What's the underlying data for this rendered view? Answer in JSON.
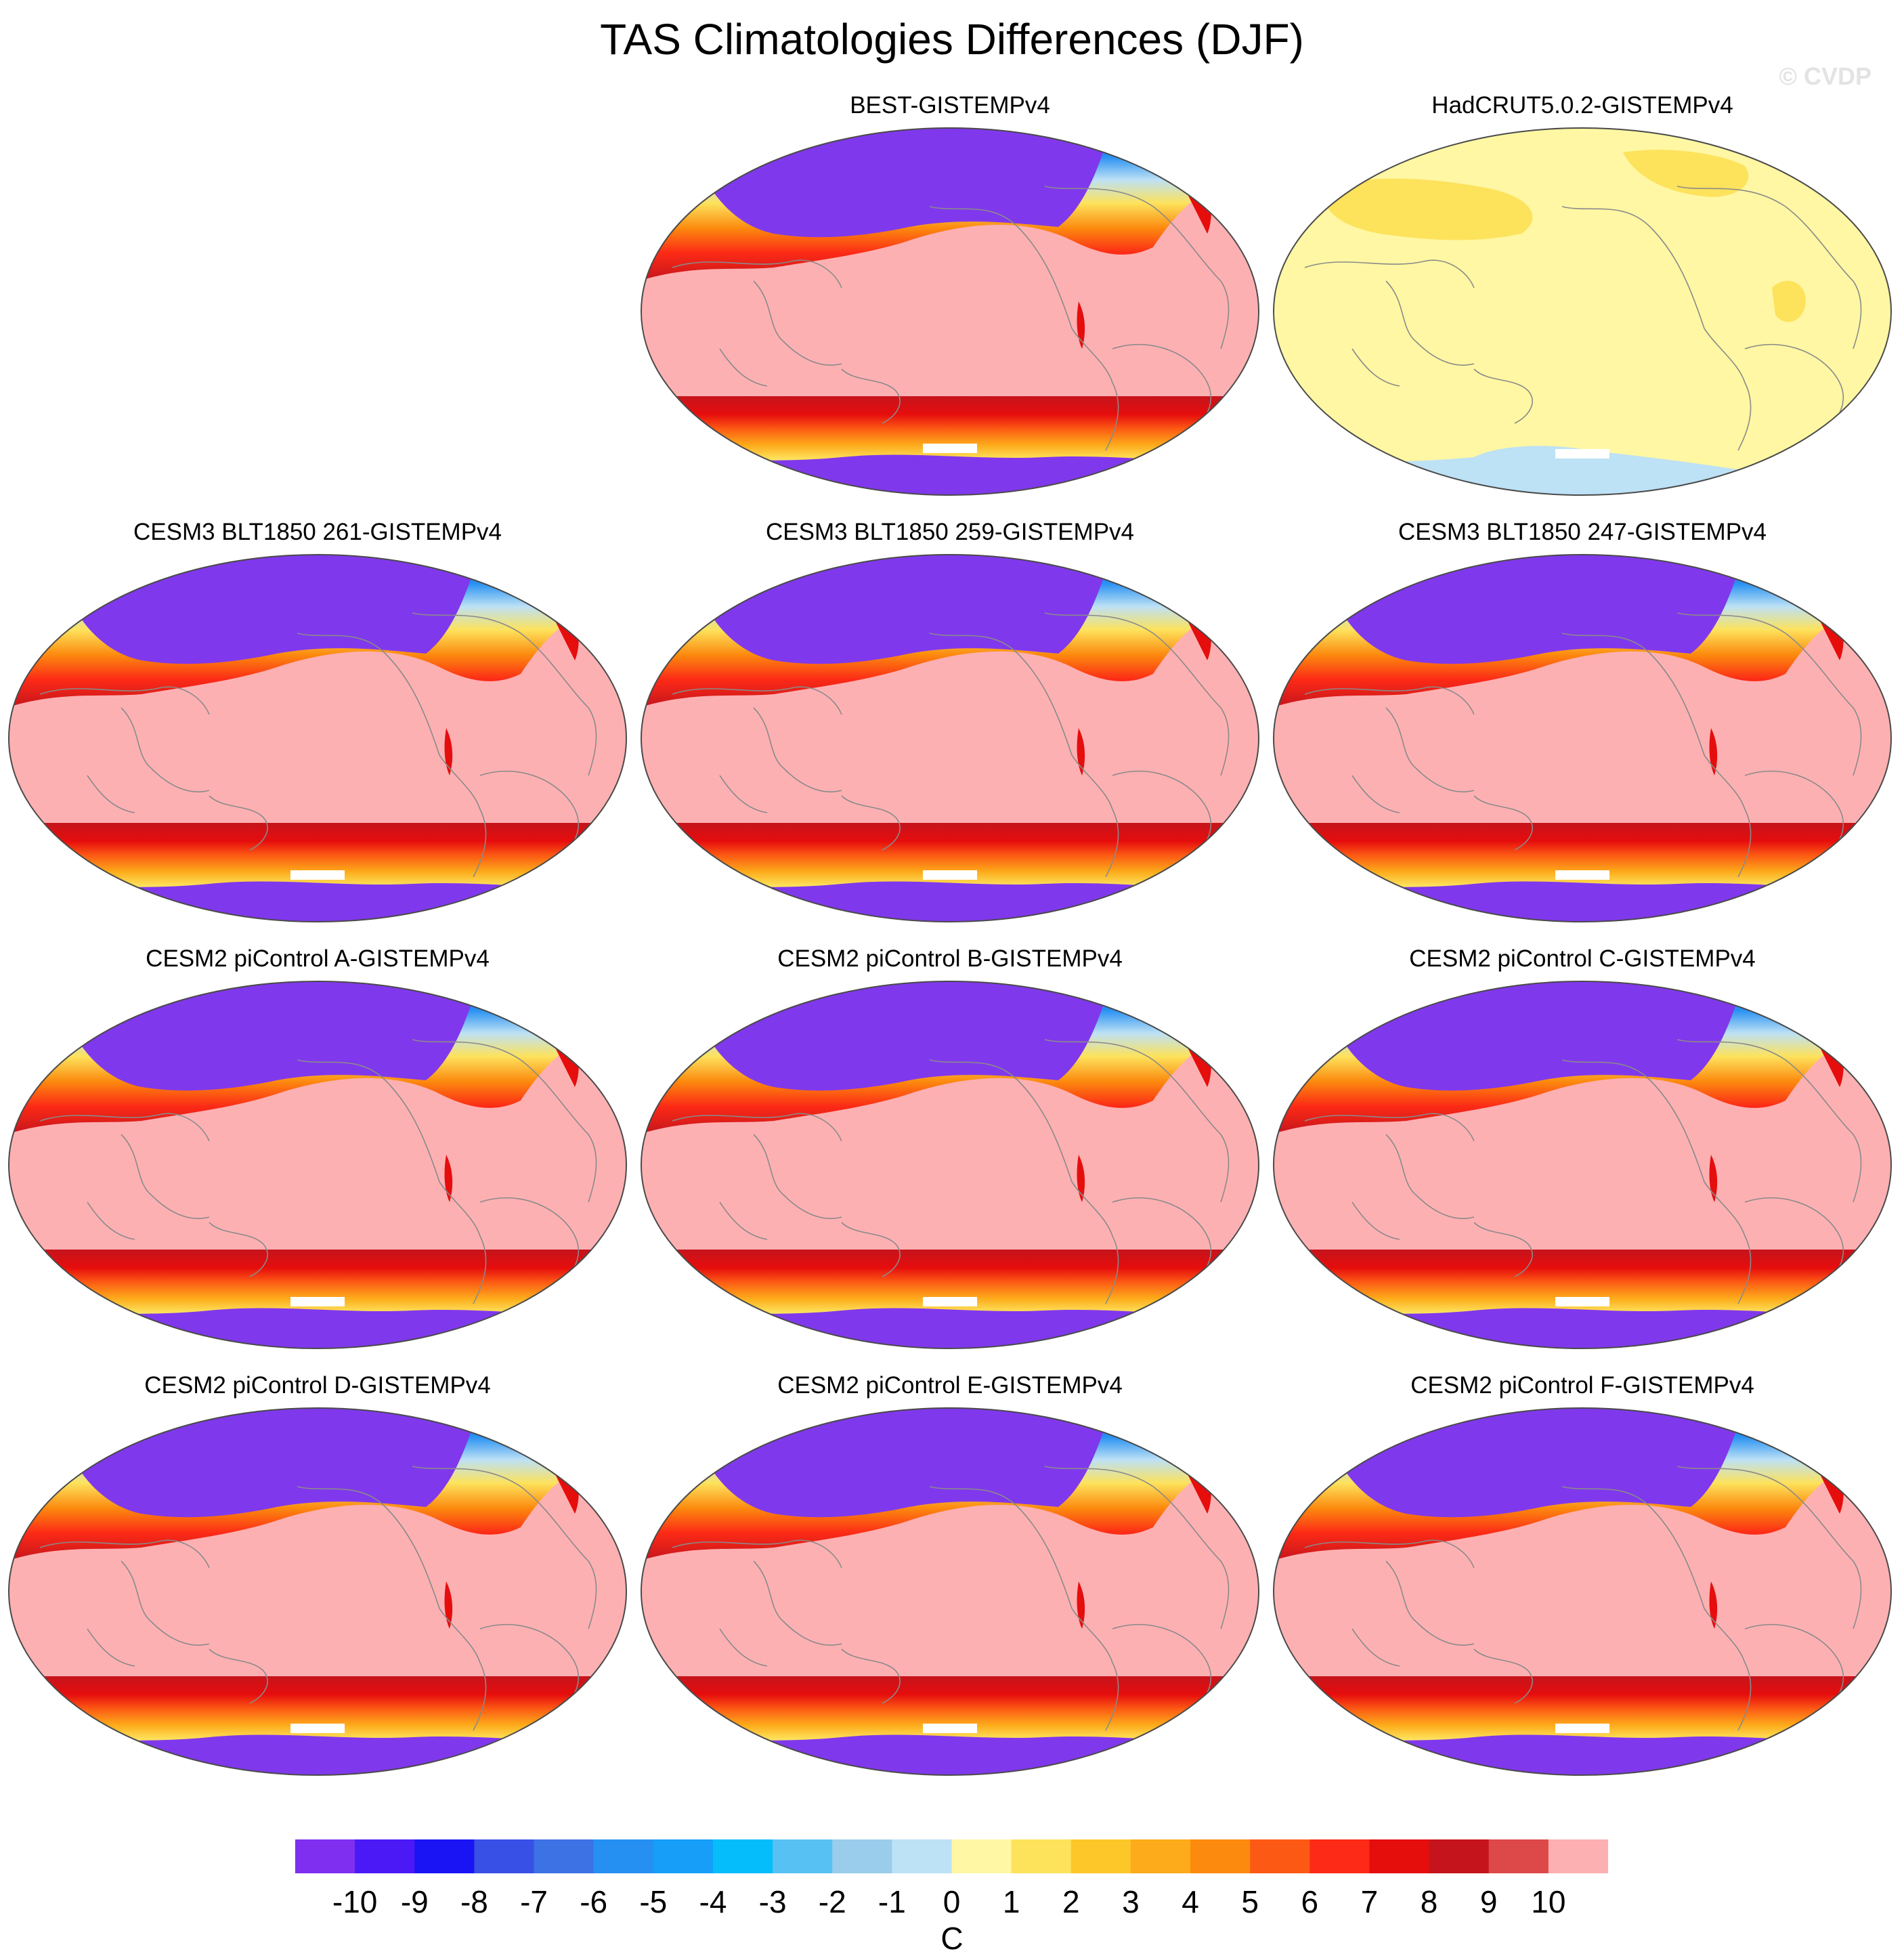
{
  "title": "TAS Climatologies Differences (DJF)",
  "watermark": "© CVDP",
  "colors": {
    "ocean_pink": "#fdb0b2",
    "pale_yellow": "#fff7a3",
    "yellow": "#fde25c",
    "light_blue": "#bde1f5",
    "purple": "#8038ec",
    "coast": "#8a8a8a",
    "outline": "#4a4a4a"
  },
  "panels": [
    {
      "id": "best",
      "title": "BEST-GISTEMPv4",
      "style": "model"
    },
    {
      "id": "hadcrut",
      "title": "HadCRUT5.0.2-GISTEMPv4",
      "style": "obs"
    },
    {
      "id": "blt261",
      "title": "CESM3 BLT1850 261-GISTEMPv4",
      "style": "model"
    },
    {
      "id": "blt259",
      "title": "CESM3 BLT1850 259-GISTEMPv4",
      "style": "model"
    },
    {
      "id": "blt247",
      "title": "CESM3 BLT1850 247-GISTEMPv4",
      "style": "model"
    },
    {
      "id": "picA",
      "title": "CESM2 piControl A-GISTEMPv4",
      "style": "model"
    },
    {
      "id": "picB",
      "title": "CESM2 piControl B-GISTEMPv4",
      "style": "model"
    },
    {
      "id": "picC",
      "title": "CESM2 piControl C-GISTEMPv4",
      "style": "model"
    },
    {
      "id": "picD",
      "title": "CESM2 piControl D-GISTEMPv4",
      "style": "model"
    },
    {
      "id": "picE",
      "title": "CESM2 piControl E-GISTEMPv4",
      "style": "model"
    },
    {
      "id": "picF",
      "title": "CESM2 piControl F-GISTEMPv4",
      "style": "model"
    }
  ],
  "colorbar": {
    "units": "C",
    "labels": [
      "-10",
      "-9",
      "-8",
      "-7",
      "-6",
      "-5",
      "-4",
      "-3",
      "-2",
      "-1",
      "0",
      "1",
      "2",
      "3",
      "4",
      "5",
      "6",
      "7",
      "8",
      "9",
      "10"
    ],
    "colors": [
      "#7e2ff0",
      "#4b19f5",
      "#1a14f5",
      "#3950e6",
      "#3c72e3",
      "#2690f2",
      "#169ef8",
      "#06bdfb",
      "#58c1f3",
      "#99cdeb",
      "#bde1f5",
      "#fff7a3",
      "#fde25c",
      "#fdc72a",
      "#fdab1a",
      "#fc8a0e",
      "#fc5a14",
      "#fc2a16",
      "#e60d0d",
      "#c5141c",
      "#dd4848",
      "#fdb0b2"
    ]
  }
}
